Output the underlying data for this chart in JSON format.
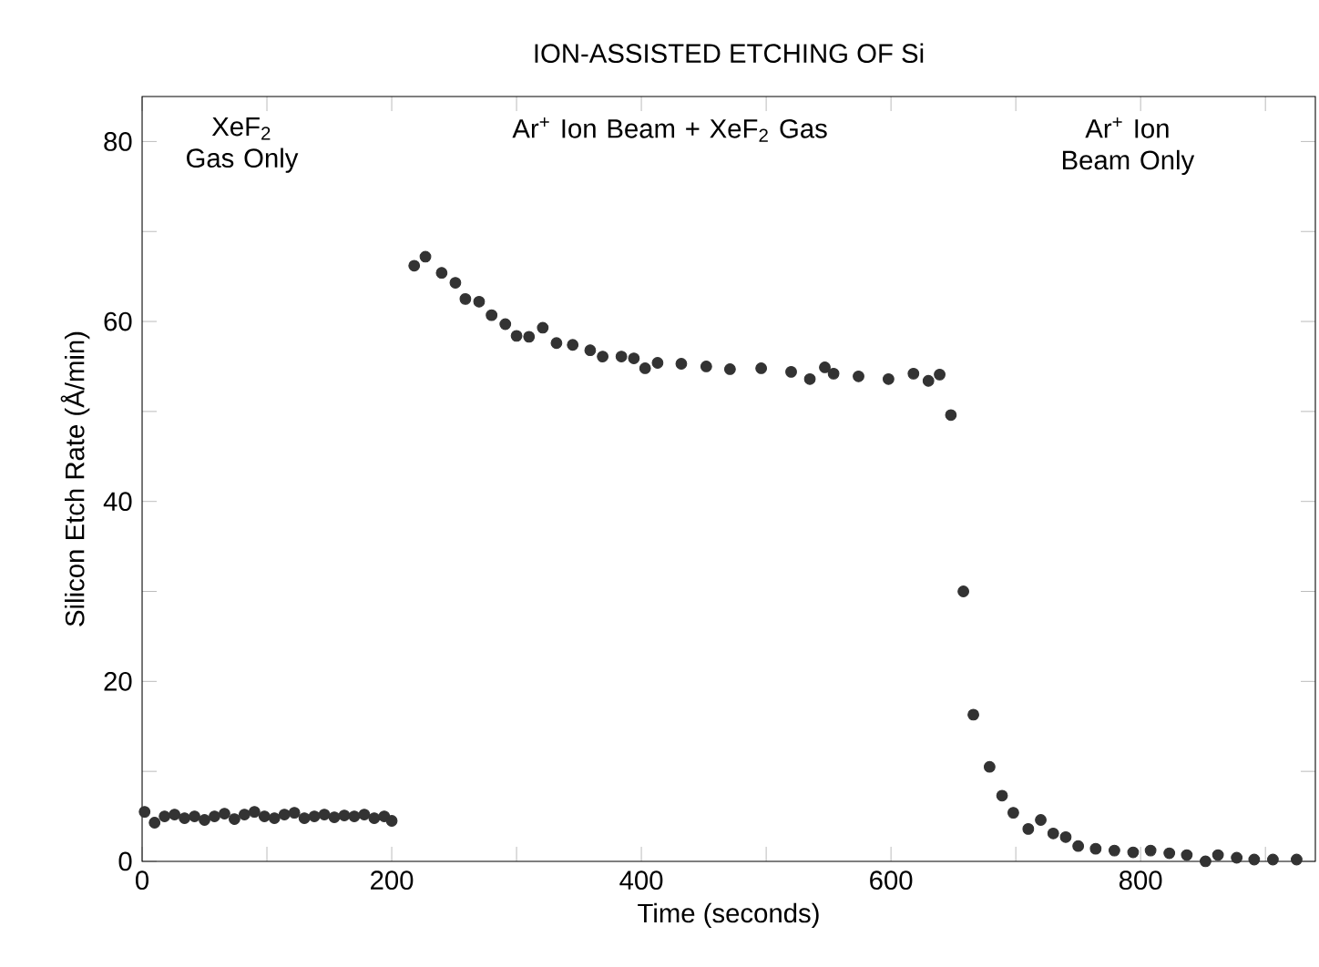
{
  "chart_data": {
    "type": "scatter",
    "title": "ION-ASSISTED ETCHING OF Si",
    "xlabel": "Time (seconds)",
    "ylabel": "Silicon Etch Rate (Å/min)",
    "xlim": [
      0,
      940
    ],
    "ylim": [
      0,
      85
    ],
    "xticks": [
      0,
      {
        "value": 100,
        "label": null
      },
      200,
      {
        "value": 300,
        "label": null
      },
      400,
      {
        "value": 500,
        "label": null
      },
      600,
      {
        "value": 700,
        "label": null
      },
      800,
      {
        "value": 900,
        "label": null
      }
    ],
    "yticks": [
      0,
      {
        "value": 10,
        "label": null
      },
      20,
      {
        "value": 30,
        "label": null
      },
      40,
      {
        "value": 50,
        "label": null
      },
      60,
      {
        "value": 70,
        "label": null
      },
      80
    ],
    "marker": "circle",
    "annotations": [
      "XeF$_{2}$ Gas Only",
      "Ar$^{+}$ Ion Beam + XeF$_{2}$ Gas",
      "Ar$^{+}$ Ion Beam Only"
    ],
    "series": [
      {
        "color": "#333333",
        "x": [
          2,
          10,
          18,
          26,
          34,
          42,
          50,
          58,
          66,
          74,
          82,
          90,
          98,
          106,
          114,
          122,
          130,
          138,
          146,
          154,
          162,
          170,
          178,
          186,
          194,
          200
        ],
        "values": [
          5.5,
          4.3,
          5.0,
          5.2,
          4.8,
          5.0,
          4.6,
          5.0,
          5.3,
          4.7,
          5.2,
          5.5,
          5.0,
          4.8,
          5.2,
          5.4,
          4.8,
          5.0,
          5.2,
          4.9,
          5.1,
          5.0,
          5.2,
          4.8,
          5.0,
          4.5
        ]
      },
      {
        "color": "#333333",
        "x": [
          218,
          227,
          240,
          251,
          259,
          270,
          280,
          291,
          300,
          310,
          321,
          332,
          345,
          359,
          369,
          384,
          394,
          403,
          413,
          432,
          452,
          471,
          496,
          520,
          535,
          547,
          554,
          574,
          598,
          618,
          630,
          639
        ],
        "values": [
          66.2,
          67.2,
          65.4,
          64.3,
          62.5,
          62.2,
          60.7,
          59.7,
          58.4,
          58.3,
          59.3,
          57.6,
          57.4,
          56.8,
          56.1,
          56.1,
          55.9,
          54.8,
          55.4,
          55.3,
          55.0,
          54.7,
          54.8,
          54.4,
          53.6,
          54.9,
          54.2,
          53.9,
          53.6,
          54.2,
          53.4,
          54.1
        ]
      },
      {
        "color": "#333333",
        "x": [
          648,
          658,
          666,
          679,
          689,
          698,
          710,
          720,
          730,
          740,
          750,
          764,
          779,
          794,
          808,
          823,
          837,
          852,
          862,
          877,
          891,
          906,
          925
        ],
        "values": [
          49.6,
          30.0,
          16.3,
          10.5,
          7.3,
          5.4,
          3.6,
          4.6,
          3.1,
          2.7,
          1.7,
          1.4,
          1.2,
          1.0,
          1.2,
          0.9,
          0.7,
          0.0,
          0.7,
          0.4,
          0.2,
          0.2,
          0.2
        ]
      }
    ]
  }
}
